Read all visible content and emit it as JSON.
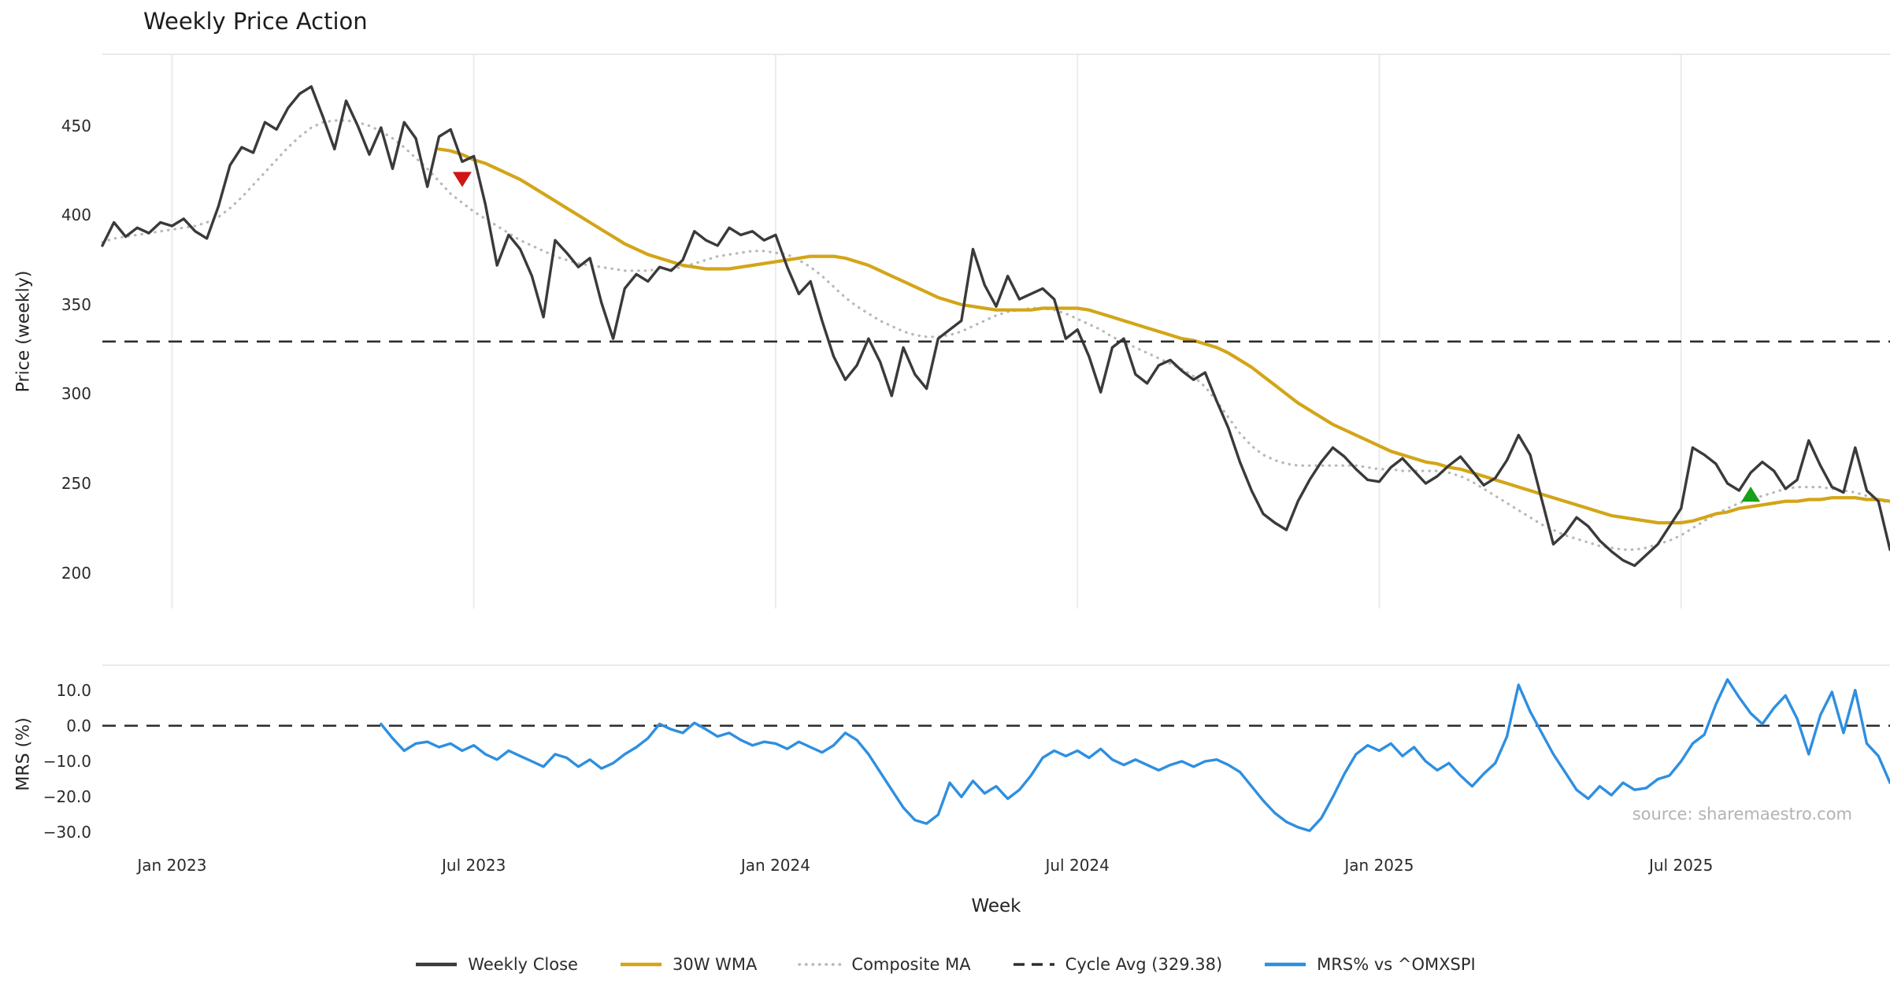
{
  "chart_data": {
    "type": "line",
    "title": "Weekly Price Action",
    "xlabel": "Week",
    "source": "source: sharemaestro.com",
    "legend": [
      {
        "label": "Weekly Close",
        "color": "#3a3a3a",
        "style": "solid"
      },
      {
        "label": "30W WMA",
        "color": "#d3a518",
        "style": "solid"
      },
      {
        "label": "Composite MA",
        "color": "#b8b8b8",
        "style": "dotted"
      },
      {
        "label": "Cycle Avg (329.38)",
        "color": "#2e2e2e",
        "style": "dashed"
      },
      {
        "label": "MRS% vs ^OMXSPI",
        "color": "#2e8fe0",
        "style": "solid"
      }
    ],
    "x": {
      "weeks_total": 155,
      "ticks": [
        {
          "week": 6,
          "label": "Jan 2023"
        },
        {
          "week": 32,
          "label": "Jul 2023"
        },
        {
          "week": 58,
          "label": "Jan 2024"
        },
        {
          "week": 84,
          "label": "Jul 2024"
        },
        {
          "week": 110,
          "label": "Jan 2025"
        },
        {
          "week": 136,
          "label": "Jul 2025"
        }
      ]
    },
    "panels": [
      {
        "name": "price",
        "ylabel": "Price (weekly)",
        "ylim": [
          180,
          490
        ],
        "yticks": [
          450,
          400,
          350,
          300,
          250,
          200
        ],
        "ytick_labels": [
          "450",
          "400",
          "350",
          "300",
          "250",
          "200"
        ],
        "grid_vertical": true,
        "series": [
          {
            "key": "composite-ma",
            "name": "Composite MA",
            "color": "#b8b8b8",
            "style": "dotted",
            "width": 3.2,
            "values": [
              385,
              387,
              388,
              389,
              390,
              391,
              392,
              393,
              394,
              396,
              399,
              404,
              410,
              417,
              424,
              431,
              438,
              444,
              449,
              452,
              453,
              453,
              452,
              450,
              447,
              443,
              438,
              432,
              426,
              419,
              412,
              407,
              402,
              398,
              394,
              390,
              386,
              383,
              380,
              377,
              375,
              373,
              372,
              371,
              370,
              369,
              369,
              369,
              370,
              370,
              371,
              373,
              375,
              377,
              378,
              379,
              380,
              380,
              379,
              378,
              375,
              371,
              366,
              360,
              354,
              349,
              345,
              341,
              338,
              335,
              333,
              332,
              332,
              333,
              335,
              338,
              341,
              344,
              346,
              347,
              348,
              348,
              347,
              345,
              342,
              339,
              336,
              332,
              329,
              326,
              323,
              320,
              317,
              314,
              310,
              304,
              296,
              287,
              278,
              271,
              266,
              263,
              261,
              260,
              260,
              260,
              260,
              260,
              260,
              259,
              258,
              258,
              257,
              257,
              257,
              257,
              256,
              254,
              251,
              247,
              243,
              239,
              235,
              231,
              227,
              224,
              221,
              219,
              217,
              215,
              214,
              213,
              213,
              214,
              216,
              218,
              221,
              225,
              229,
              233,
              236,
              239,
              241,
              243,
              245,
              247,
              248,
              248,
              248,
              247,
              246,
              245,
              243,
              241,
              239
            ]
          },
          {
            "key": "wma-30w",
            "name": "30W WMA",
            "color": "#d3a518",
            "style": "solid",
            "width": 4.2,
            "values": [
              null,
              null,
              null,
              null,
              null,
              null,
              null,
              null,
              null,
              null,
              null,
              null,
              null,
              null,
              null,
              null,
              null,
              null,
              null,
              null,
              null,
              null,
              null,
              null,
              null,
              null,
              null,
              null,
              null,
              437,
              436,
              434,
              431,
              429,
              426,
              423,
              420,
              416,
              412,
              408,
              404,
              400,
              396,
              392,
              388,
              384,
              381,
              378,
              376,
              374,
              372,
              371,
              370,
              370,
              370,
              371,
              372,
              373,
              374,
              375,
              376,
              377,
              377,
              377,
              376,
              374,
              372,
              369,
              366,
              363,
              360,
              357,
              354,
              352,
              350,
              349,
              348,
              347,
              347,
              347,
              347,
              348,
              348,
              348,
              348,
              347,
              345,
              343,
              341,
              339,
              337,
              335,
              333,
              331,
              330,
              328,
              326,
              323,
              319,
              315,
              310,
              305,
              300,
              295,
              291,
              287,
              283,
              280,
              277,
              274,
              271,
              268,
              266,
              264,
              262,
              261,
              259,
              258,
              256,
              254,
              252,
              250,
              248,
              246,
              244,
              242,
              240,
              238,
              236,
              234,
              232,
              231,
              230,
              229,
              228,
              228,
              228,
              229,
              231,
              233,
              234,
              236,
              237,
              238,
              239,
              240,
              240,
              241,
              241,
              242,
              242,
              242,
              241,
              241,
              240
            ]
          },
          {
            "key": "weekly-close",
            "name": "Weekly Close",
            "color": "#3a3a3a",
            "style": "solid",
            "width": 3.4,
            "values": [
              383,
              396,
              388,
              393,
              390,
              396,
              394,
              398,
              391,
              387,
              405,
              428,
              438,
              435,
              452,
              448,
              460,
              468,
              472,
              455,
              437,
              464,
              450,
              434,
              449,
              426,
              452,
              443,
              416,
              444,
              448,
              430,
              433,
              406,
              372,
              389,
              381,
              366,
              343,
              386,
              379,
              371,
              376,
              351,
              331,
              359,
              367,
              363,
              371,
              369,
              375,
              391,
              386,
              383,
              393,
              389,
              391,
              386,
              389,
              371,
              356,
              363,
              341,
              321,
              308,
              316,
              331,
              318,
              299,
              326,
              311,
              303,
              331,
              336,
              341,
              381,
              361,
              349,
              366,
              353,
              356,
              359,
              353,
              331,
              336,
              321,
              301,
              326,
              331,
              311,
              306,
              316,
              319,
              313,
              308,
              312,
              296,
              281,
              262,
              246,
              233,
              228,
              224,
              240,
              252,
              262,
              270,
              265,
              258,
              252,
              251,
              259,
              264,
              257,
              250,
              254,
              260,
              265,
              257,
              249,
              253,
              263,
              277,
              266,
              241,
              216,
              222,
              231,
              226,
              218,
              212,
              207,
              204,
              210,
              216,
              226,
              236,
              270,
              266,
              261,
              250,
              246,
              256,
              262,
              257,
              247,
              252,
              274,
              260,
              248,
              245,
              270,
              246,
              240,
              213
            ]
          },
          {
            "key": "cycle-avg",
            "name": "Cycle Avg (329.38)",
            "color": "#2e2e2e",
            "style": "dashed",
            "width": 2.6,
            "const": 329.38
          }
        ],
        "markers": [
          {
            "key": "sell-signal-marker",
            "shape": "triangle-down",
            "color": "#cf1515",
            "week": 31,
            "value": 420
          },
          {
            "key": "buy-signal-marker",
            "shape": "triangle-up",
            "color": "#18a018",
            "week": 142,
            "value": 244
          }
        ]
      },
      {
        "name": "mrs",
        "ylabel": "MRS (%)",
        "ylim": [
          -33,
          17
        ],
        "yticks": [
          10,
          0,
          -10,
          -20,
          -30
        ],
        "ytick_labels": [
          "10.0",
          "0.0",
          "−10.0",
          "−20.0",
          "−30.0"
        ],
        "grid_vertical": false,
        "series": [
          {
            "key": "zero-line",
            "name": "Zero",
            "color": "#2e2e2e",
            "style": "dashed",
            "width": 2.6,
            "const": 0
          },
          {
            "key": "mrs-line",
            "name": "MRS% vs ^OMXSPI",
            "color": "#2e8fe0",
            "style": "solid",
            "width": 3.4,
            "values": [
              null,
              null,
              null,
              null,
              null,
              null,
              null,
              null,
              null,
              null,
              null,
              null,
              null,
              null,
              null,
              null,
              null,
              null,
              null,
              null,
              null,
              null,
              null,
              null,
              0.5,
              -3.5,
              -7,
              -5,
              -4.5,
              -6,
              -5,
              -7,
              -5.5,
              -8,
              -9.5,
              -7,
              -8.5,
              -10,
              -11.5,
              -8,
              -9,
              -11.5,
              -9.5,
              -12,
              -10.5,
              -8,
              -6,
              -3.5,
              0.5,
              -1,
              -2,
              0.8,
              -1,
              -3,
              -2,
              -4,
              -5.5,
              -4.5,
              -5,
              -6.5,
              -4.5,
              -6,
              -7.5,
              -5.5,
              -2,
              -4,
              -8,
              -13,
              -18,
              -23,
              -26.5,
              -27.5,
              -25,
              -16,
              -20,
              -15.5,
              -19,
              -17,
              -20.5,
              -18,
              -14,
              -9,
              -7,
              -8.5,
              -7,
              -9,
              -6.5,
              -9.5,
              -11,
              -9.5,
              -11,
              -12.5,
              -11,
              -10,
              -11.5,
              -10,
              -9.5,
              -11,
              -13,
              -17,
              -21,
              -24.5,
              -27,
              -28.5,
              -29.5,
              -26,
              -20,
              -13.5,
              -8,
              -5.5,
              -7,
              -5,
              -8.5,
              -6,
              -10,
              -12.5,
              -10.5,
              -14,
              -17,
              -13.5,
              -10.5,
              -3,
              11.5,
              4,
              -2,
              -8,
              -13,
              -18,
              -20.5,
              -17,
              -19.5,
              -16,
              -18,
              -17.5,
              -15,
              -14,
              -10,
              -5,
              -2.5,
              6,
              13,
              8,
              3.5,
              0.5,
              5,
              8.5,
              2,
              -8,
              3,
              9.5,
              -2,
              10,
              -5,
              -8.5,
              -16
            ]
          }
        ]
      }
    ]
  }
}
